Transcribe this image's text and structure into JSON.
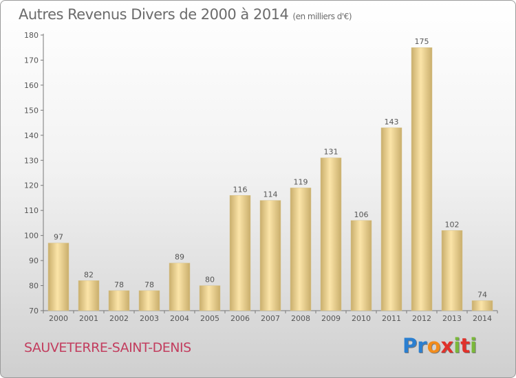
{
  "header": {
    "title": "Autres Revenus Divers de 2000 à 2014",
    "subtitle": "(en milliers d'€)"
  },
  "footer": {
    "commune": "SAUVETERRE-SAINT-DENIS",
    "logo": {
      "letters": [
        "P",
        "r",
        "o",
        "x",
        "i",
        "t",
        "i"
      ]
    }
  },
  "colors": {
    "bar_light": "#fbe4a8",
    "bar_dark": "#c9ae6c",
    "commune": "#c23d5e",
    "logo": [
      "#2b7fd0",
      "#2b7fd0",
      "#f28c1c",
      "#e0322b",
      "#7ab83a",
      "#e0322b",
      "#7ab83a"
    ]
  },
  "chart_data": {
    "type": "bar",
    "title": "Autres Revenus Divers de 2000 à 2014",
    "subtitle": "(en milliers d'€)",
    "categories": [
      "2000",
      "2001",
      "2002",
      "2003",
      "2004",
      "2005",
      "2006",
      "2007",
      "2008",
      "2009",
      "2010",
      "2011",
      "2012",
      "2013",
      "2014"
    ],
    "values": [
      97,
      82,
      78,
      78,
      89,
      80,
      116,
      114,
      119,
      131,
      106,
      143,
      175,
      102,
      74
    ],
    "data_labels": [
      "97",
      "82",
      "78",
      "78",
      "89",
      "80",
      "116",
      "114",
      "119",
      "131",
      "106",
      "143",
      "175",
      "102",
      "74"
    ],
    "xlabel": "",
    "ylabel": "",
    "ylim": [
      70,
      180
    ],
    "yticks": [
      70,
      80,
      90,
      100,
      110,
      120,
      130,
      140,
      150,
      160,
      170,
      180
    ],
    "grid": false
  }
}
